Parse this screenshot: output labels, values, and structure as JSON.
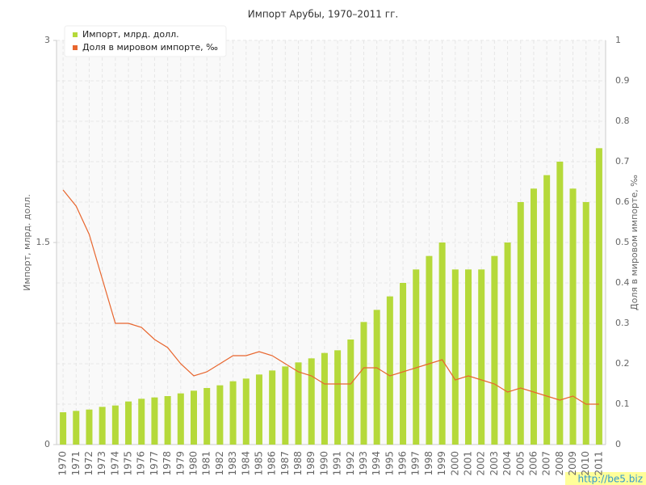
{
  "chart_data": {
    "type": "combo",
    "title": "Импорт Арубы, 1970–2011 гг.",
    "y_label": "Импорт, млрд. долл.",
    "y2_label": "Доля в мировом импорте, ‰",
    "watermark": "http://be5.biz",
    "categories": [
      "1970",
      "1971",
      "1972",
      "1973",
      "1974",
      "1975",
      "1976",
      "1977",
      "1978",
      "1979",
      "1980",
      "1981",
      "1982",
      "1983",
      "1984",
      "1985",
      "1986",
      "1987",
      "1988",
      "1989",
      "1990",
      "1991",
      "1992",
      "1993",
      "1994",
      "1995",
      "1996",
      "1997",
      "1998",
      "1999",
      "2000",
      "2001",
      "2002",
      "2003",
      "2004",
      "2005",
      "2006",
      "2007",
      "2008",
      "2009",
      "2010",
      "2011"
    ],
    "series": [
      {
        "name": "Импорт, млрд. долл.",
        "type": "bar",
        "color": "#b5d93a",
        "values": [
          0.24,
          0.25,
          0.26,
          0.28,
          0.29,
          0.32,
          0.34,
          0.35,
          0.36,
          0.38,
          0.4,
          0.42,
          0.44,
          0.47,
          0.49,
          0.52,
          0.55,
          0.58,
          0.61,
          0.64,
          0.68,
          0.7,
          0.78,
          0.91,
          1.0,
          1.1,
          1.2,
          1.3,
          1.4,
          1.5,
          1.3,
          1.3,
          1.3,
          1.4,
          1.5,
          1.8,
          1.9,
          2.0,
          2.1,
          1.9,
          1.8,
          2.2
        ]
      },
      {
        "name": "Доля в мировом импорте, ‰",
        "type": "line",
        "axis": "y2",
        "color": "#e8662e",
        "values": [
          0.63,
          0.59,
          0.52,
          0.41,
          0.3,
          0.3,
          0.29,
          0.26,
          0.24,
          0.2,
          0.17,
          0.18,
          0.2,
          0.22,
          0.22,
          0.23,
          0.22,
          0.2,
          0.18,
          0.17,
          0.15,
          0.15,
          0.15,
          0.19,
          0.19,
          0.17,
          0.18,
          0.19,
          0.2,
          0.21,
          0.16,
          0.17,
          0.16,
          0.15,
          0.13,
          0.14,
          0.13,
          0.12,
          0.11,
          0.12,
          0.1,
          0.1
        ]
      }
    ],
    "ylim": [
      0,
      3
    ],
    "yticks": [
      0,
      1.5,
      3
    ],
    "y2lim": [
      0,
      1
    ],
    "y2ticks": [
      0,
      0.1,
      0.2,
      0.3,
      0.4,
      0.5,
      0.6,
      0.7,
      0.8,
      0.9,
      1
    ],
    "grid": true,
    "legend": "top-left"
  }
}
